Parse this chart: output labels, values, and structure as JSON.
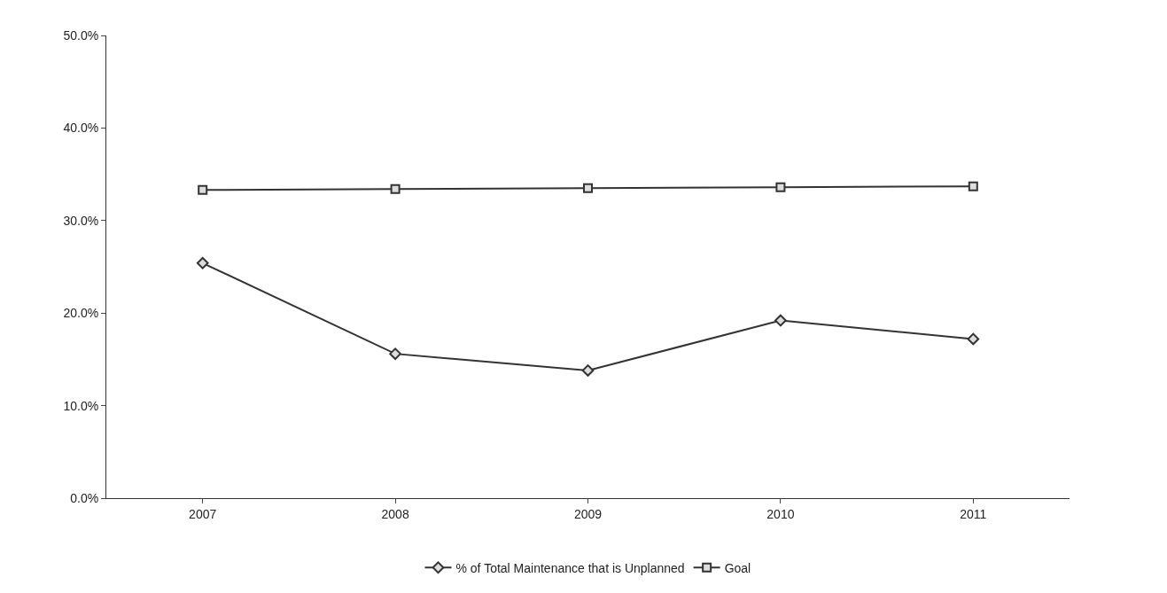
{
  "chart_data": {
    "type": "line",
    "categories": [
      "2007",
      "2008",
      "2009",
      "2010",
      "2011"
    ],
    "series": [
      {
        "name": "% of Total Maintenance that is Unplanned",
        "color": "#333333",
        "marker": "diamond",
        "values": [
          25.4,
          15.6,
          13.8,
          19.2,
          17.2
        ]
      },
      {
        "name": "Goal",
        "color": "#333333",
        "marker": "square",
        "values": [
          33.3,
          33.4,
          33.5,
          33.6,
          33.7
        ]
      }
    ],
    "ylim": [
      0,
      50
    ],
    "yticks": [
      {
        "value": 0,
        "label": "0.0%"
      },
      {
        "value": 10,
        "label": "10.0%"
      },
      {
        "value": 20,
        "label": "20.0%"
      },
      {
        "value": 30,
        "label": "30.0%"
      },
      {
        "value": 40,
        "label": "40.0%"
      },
      {
        "value": 50,
        "label": "50.0%"
      }
    ],
    "legend": "bottom",
    "line_style": "solid"
  }
}
